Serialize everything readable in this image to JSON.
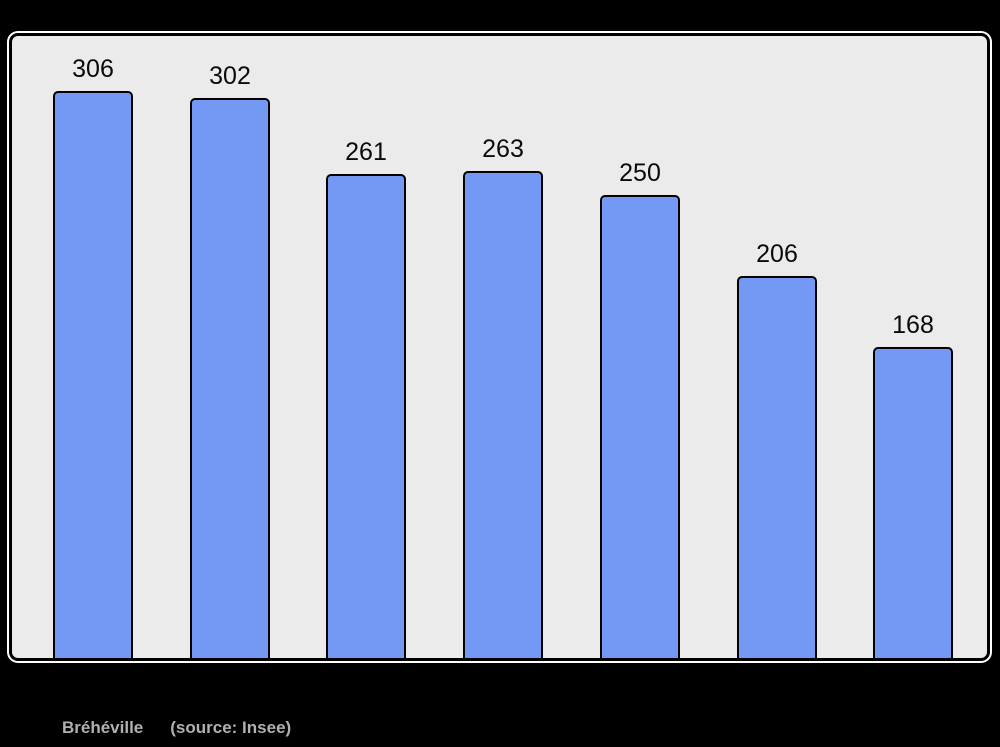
{
  "chart_data": {
    "type": "bar",
    "title": "",
    "orientation": "vertical",
    "values": [
      306,
      302,
      261,
      263,
      250,
      206,
      168
    ],
    "data_labels": [
      "306",
      "302",
      "261",
      "263",
      "250",
      "206",
      "168"
    ],
    "ylim": [
      0,
      336
    ],
    "grid": false,
    "axes_visible": false,
    "legend": "none",
    "bar_count": 7
  },
  "footer": {
    "commune": "Bréhéville",
    "source": "(source: Insee)"
  },
  "colors": {
    "page_bg": "#000000",
    "plot_bg": "#ebebeb",
    "plot_border": "#000000",
    "plot_outline": "#ffffff",
    "bar_fill": "#7399f5",
    "bar_border": "#000000",
    "data_label": "#0a0a0a",
    "footer_text": "#b0b0b0"
  }
}
